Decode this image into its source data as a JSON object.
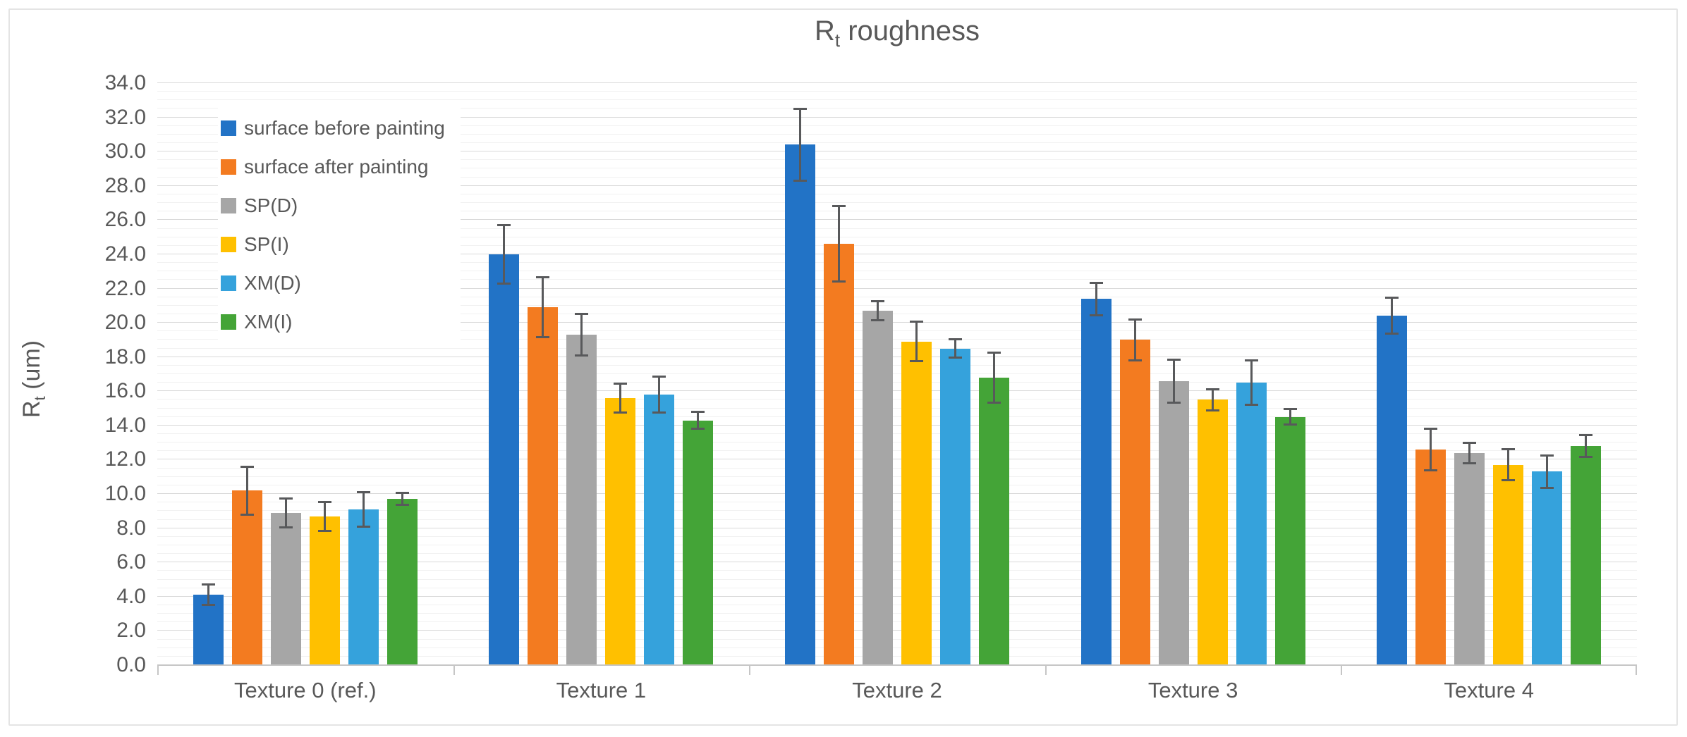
{
  "figure": {
    "title_base": "R",
    "title_sub": "t",
    "title_rest": " roughness",
    "ylabel_base": "R",
    "ylabel_sub": "t",
    "ylabel_rest": " (um)"
  },
  "chart_data": {
    "type": "bar",
    "title": "Rt roughness",
    "xlabel": "",
    "ylabel": "Rt (um)",
    "ylim": [
      0.0,
      34.0
    ],
    "y_major_step": 2.0,
    "y_minor_step": 0.5,
    "grid": true,
    "error_bars": true,
    "legend_position": "inside-top-left",
    "y_tick_labels": [
      "0.0",
      "2.0",
      "4.0",
      "6.0",
      "8.0",
      "10.0",
      "12.0",
      "14.0",
      "16.0",
      "18.0",
      "20.0",
      "22.0",
      "24.0",
      "26.0",
      "28.0",
      "30.0",
      "32.0",
      "34.0"
    ],
    "categories": [
      "Texture 0 (ref.)",
      "Texture 1",
      "Texture 2",
      "Texture 3",
      "Texture 4"
    ],
    "series": [
      {
        "name": "surface before painting",
        "color": "#2273c6",
        "values": [
          4.1,
          24.0,
          30.4,
          21.4,
          20.4
        ],
        "errors": [
          0.6,
          1.7,
          2.1,
          0.95,
          1.05
        ]
      },
      {
        "name": "surface after painting",
        "color": "#f37b20",
        "values": [
          10.2,
          20.9,
          24.6,
          19.0,
          12.6
        ],
        "errors": [
          1.4,
          1.75,
          2.2,
          1.2,
          1.2
        ]
      },
      {
        "name": "SP(D)",
        "color": "#a6a6a6",
        "values": [
          8.9,
          19.3,
          20.7,
          16.6,
          12.4
        ],
        "errors": [
          0.85,
          1.2,
          0.55,
          1.25,
          0.6
        ]
      },
      {
        "name": "SP(I)",
        "color": "#ffc000",
        "values": [
          8.7,
          15.6,
          18.9,
          15.5,
          11.7
        ],
        "errors": [
          0.85,
          0.85,
          1.15,
          0.6,
          0.9
        ]
      },
      {
        "name": "XM(D)",
        "color": "#35a2dc",
        "values": [
          9.1,
          15.8,
          18.5,
          16.5,
          11.3
        ],
        "errors": [
          1.0,
          1.05,
          0.55,
          1.3,
          0.95
        ]
      },
      {
        "name": "XM(I)",
        "color": "#44a437",
        "values": [
          9.7,
          14.3,
          16.8,
          14.5,
          12.8
        ],
        "errors": [
          0.35,
          0.5,
          1.45,
          0.45,
          0.65
        ]
      }
    ],
    "colors": {
      "text": "#595959",
      "grid_major": "#d9d9d9",
      "grid_minor": "#f1f1f1",
      "axis_line": "#c6c6c6",
      "error_bar": "#58595b"
    }
  }
}
